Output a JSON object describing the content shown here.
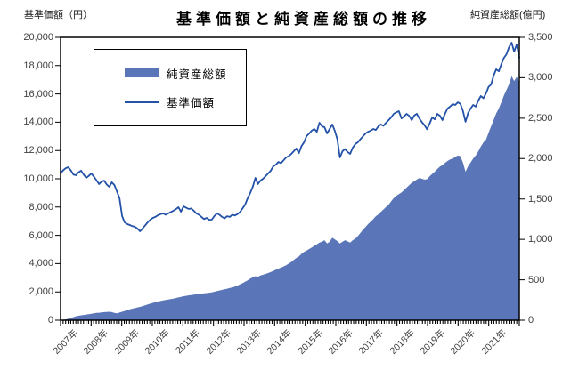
{
  "title": "基準価額と純資産総額の推移",
  "left_axis": {
    "title": "基準価額（円）",
    "ticks": [
      "20,000",
      "18,000",
      "16,000",
      "14,000",
      "12,000",
      "10,000",
      "8,000",
      "6,000",
      "4,000",
      "2,000",
      "0"
    ]
  },
  "right_axis": {
    "title": "純資産総額(億円)",
    "ticks": [
      "3,500",
      "3,000",
      "2,500",
      "2,000",
      "1,500",
      "1,000",
      "500",
      "0"
    ]
  },
  "x_axis": {
    "labels": [
      "2007年",
      "2008年",
      "2009年",
      "2010年",
      "2011年",
      "2012年",
      "2013年",
      "2014年",
      "2015年",
      "2016年",
      "2017年",
      "2018年",
      "2019年",
      "2020年",
      "2021年"
    ]
  },
  "legend": [
    {
      "label": "純資産総額",
      "type": "area",
      "color": "#5B76B8"
    },
    {
      "label": "基準価額",
      "type": "line",
      "color": "#2352A8"
    }
  ],
  "chart_data": {
    "type": "combo",
    "x_start_year": 2007,
    "x_end_year": 2021,
    "points_per_year": 12,
    "left_range": [
      0,
      20000
    ],
    "right_range": [
      0,
      3500
    ],
    "grid": false,
    "legend_position": "top-left-inside",
    "series": [
      {
        "name": "純資産総額",
        "type": "area",
        "axis": "right",
        "color": "#5B76B8",
        "unit": "億円",
        "values": [
          2,
          5,
          10,
          18,
          28,
          38,
          48,
          55,
          60,
          65,
          70,
          75,
          80,
          85,
          90,
          93,
          96,
          100,
          102,
          105,
          100,
          90,
          85,
          95,
          105,
          115,
          125,
          135,
          143,
          150,
          158,
          165,
          175,
          185,
          195,
          205,
          215,
          222,
          230,
          238,
          245,
          250,
          255,
          262,
          268,
          275,
          282,
          290,
          297,
          302,
          308,
          312,
          316,
          320,
          324,
          328,
          332,
          336,
          340,
          345,
          352,
          360,
          368,
          375,
          382,
          390,
          398,
          405,
          415,
          428,
          442,
          458,
          475,
          492,
          515,
          530,
          545,
          538,
          552,
          562,
          572,
          583,
          595,
          610,
          625,
          638,
          650,
          665,
          680,
          700,
          720,
          745,
          770,
          790,
          820,
          845,
          862,
          880,
          900,
          920,
          938,
          960,
          972,
          990,
          950,
          972,
          1020,
          1000,
          980,
          950,
          972,
          990,
          975,
          960,
          990,
          1010,
          1040,
          1080,
          1120,
          1155,
          1190,
          1220,
          1250,
          1287,
          1310,
          1340,
          1370,
          1400,
          1430,
          1470,
          1510,
          1540,
          1560,
          1580,
          1610,
          1640,
          1670,
          1700,
          1720,
          1740,
          1760,
          1750,
          1740,
          1745,
          1780,
          1810,
          1838,
          1870,
          1900,
          1920,
          1947,
          1970,
          1990,
          2002,
          2020,
          2040,
          2030,
          1950,
          1838,
          1904,
          1950,
          2000,
          2040,
          2090,
          2150,
          2200,
          2234,
          2320,
          2400,
          2480,
          2560,
          2620,
          2700,
          2780,
          2850,
          2920,
          3020,
          2960,
          3010,
          2950
        ]
      },
      {
        "name": "基準価額",
        "type": "line",
        "axis": "left",
        "color": "#2352A8",
        "unit": "円",
        "values": [
          10380,
          10600,
          10750,
          10820,
          10600,
          10300,
          10250,
          10450,
          10570,
          10300,
          10060,
          10200,
          10380,
          10150,
          9900,
          9625,
          9800,
          9870,
          9600,
          9435,
          9750,
          9560,
          9100,
          8616,
          7358,
          6918,
          6800,
          6730,
          6650,
          6604,
          6480,
          6290,
          6480,
          6700,
          6918,
          7100,
          7233,
          7300,
          7420,
          7500,
          7550,
          7450,
          7550,
          7650,
          7736,
          7850,
          7987,
          7670,
          8050,
          7950,
          7860,
          7900,
          7736,
          7550,
          7450,
          7300,
          7150,
          7230,
          7100,
          7107,
          7358,
          7550,
          7450,
          7300,
          7200,
          7350,
          7300,
          7450,
          7400,
          7500,
          7650,
          7900,
          8176,
          8616,
          8993,
          9434,
          10063,
          9623,
          9874,
          10000,
          10190,
          10380,
          10566,
          10880,
          11000,
          11195,
          11100,
          11300,
          11510,
          11600,
          11750,
          11950,
          12140,
          11820,
          12300,
          12580,
          13020,
          13210,
          13400,
          13520,
          13330,
          13960,
          13710,
          13650,
          13210,
          13520,
          13840,
          13400,
          12800,
          11510,
          11950,
          12100,
          11900,
          11760,
          12200,
          12450,
          12580,
          12800,
          13000,
          13210,
          13330,
          13400,
          13520,
          13450,
          13710,
          13840,
          13750,
          13960,
          14150,
          14340,
          14590,
          14700,
          14780,
          14270,
          14400,
          14590,
          14450,
          14150,
          14465,
          14600,
          14270,
          14000,
          13800,
          13500,
          13900,
          14340,
          14200,
          14590,
          14465,
          14150,
          14600,
          14970,
          15100,
          15280,
          15220,
          15400,
          15300,
          14800,
          14030,
          14650,
          14970,
          15220,
          15100,
          15535,
          15850,
          15700,
          16040,
          16500,
          16667,
          17300,
          17740,
          17600,
          18110,
          18550,
          18800,
          19310,
          19620,
          18990,
          19500,
          18550
        ]
      }
    ]
  }
}
